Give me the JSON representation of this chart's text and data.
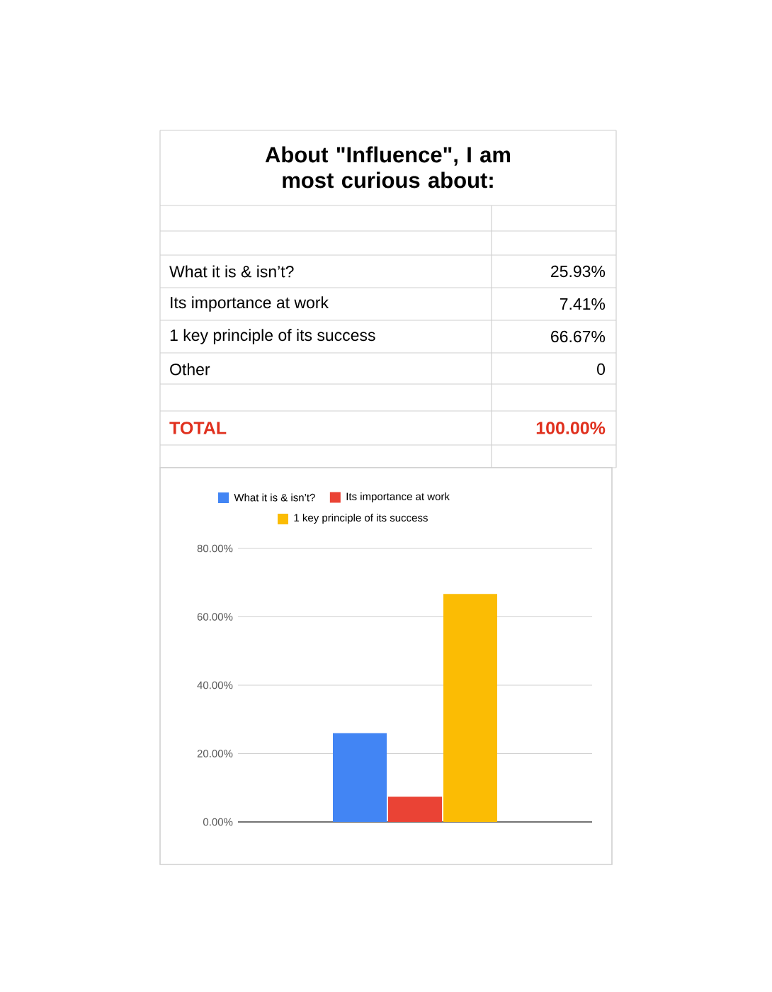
{
  "chart_data": [
    {
      "type": "other",
      "title": "About \"Influence\", I am most curious about:",
      "annotations": [
        "What it is & isn’t?",
        "25.93%",
        "Its importance at work",
        "7.41%",
        "1 key principle of its success",
        "66.67%",
        "Other",
        "0",
        "TOTAL",
        "100.00%"
      ]
    },
    {
      "type": "bar",
      "categories": [
        null
      ],
      "series": [
        {
          "name": "What it is & isn’t?",
          "color": "#4285f4",
          "values": [
            25.93
          ]
        },
        {
          "name": "Its importance at work",
          "color": "#ea4335",
          "values": [
            7.41
          ]
        },
        {
          "name": "1 key principle of its success",
          "color": "#fbbc04",
          "values": [
            66.67
          ]
        }
      ],
      "ylim": [
        0,
        80
      ],
      "yticks": [
        {
          "value": 0,
          "label": "0.00%"
        },
        {
          "value": 20,
          "label": "20.00%"
        },
        {
          "value": 40,
          "label": "40.00%"
        },
        {
          "value": 60,
          "label": "60.00%"
        },
        {
          "value": 80,
          "label": "80.00%"
        }
      ],
      "grid": "y",
      "legend": "top"
    }
  ]
}
